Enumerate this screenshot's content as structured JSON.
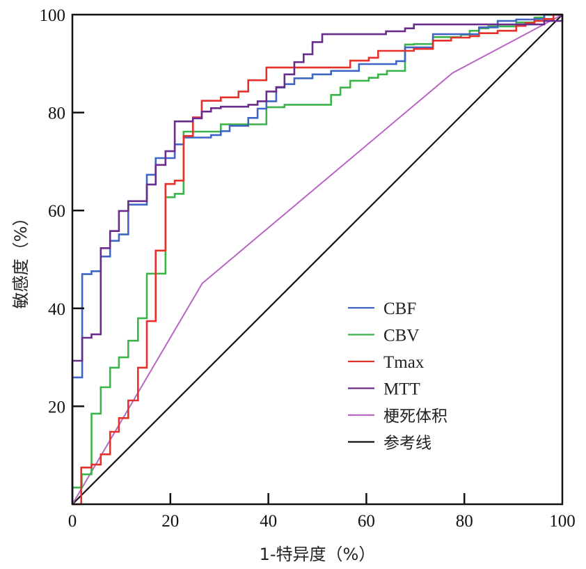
{
  "chart_data": {
    "type": "line",
    "title": "",
    "xlabel": "1-特异度（%）",
    "ylabel": "敏感度（%）",
    "xlim": [
      0,
      100
    ],
    "ylim": [
      0,
      100
    ],
    "x_ticks": [
      0,
      20,
      40,
      60,
      80,
      100
    ],
    "y_ticks": [
      20,
      40,
      60,
      80,
      100
    ],
    "x_tick_labels": [
      "0",
      "20",
      "40",
      "60",
      "80",
      "100"
    ],
    "y_tick_labels": [
      "20",
      "40",
      "60",
      "80",
      "100"
    ],
    "grid": false,
    "legend_position": "bottom-right",
    "series": [
      {
        "name": "CBF",
        "color": "#3f66c4",
        "step": true,
        "points": [
          [
            0,
            0
          ],
          [
            0,
            25.9
          ],
          [
            2.0,
            47.0
          ],
          [
            3.9,
            47.6
          ],
          [
            5.8,
            50.6
          ],
          [
            7.7,
            53.8
          ],
          [
            9.5,
            55.1
          ],
          [
            11.4,
            61.2
          ],
          [
            15.2,
            67.3
          ],
          [
            17.0,
            70.7
          ],
          [
            20.9,
            73.5
          ],
          [
            22.7,
            74.9
          ],
          [
            28.3,
            75.4
          ],
          [
            30.3,
            76.2
          ],
          [
            32.1,
            77.3
          ],
          [
            35.9,
            78.9
          ],
          [
            37.8,
            80.8
          ],
          [
            39.6,
            82.3
          ],
          [
            41.6,
            85.1
          ],
          [
            43.3,
            85.8
          ],
          [
            45.3,
            87.0
          ],
          [
            49.0,
            87.8
          ],
          [
            52.8,
            88.5
          ],
          [
            58.5,
            89.9
          ],
          [
            66.1,
            90.5
          ],
          [
            67.9,
            93.3
          ],
          [
            73.6,
            96.0
          ],
          [
            83.0,
            97.4
          ],
          [
            86.8,
            98.7
          ],
          [
            90.6,
            99.0
          ],
          [
            94.3,
            99.1
          ],
          [
            96.3,
            100
          ],
          [
            100,
            100
          ]
        ]
      },
      {
        "name": "CBV",
        "color": "#3cb44b",
        "step": true,
        "points": [
          [
            0,
            0
          ],
          [
            0,
            3.4
          ],
          [
            1.9,
            6.1
          ],
          [
            3.9,
            18.5
          ],
          [
            5.8,
            23.9
          ],
          [
            7.7,
            27.9
          ],
          [
            9.5,
            30.0
          ],
          [
            11.4,
            33.4
          ],
          [
            13.4,
            38.0
          ],
          [
            15.2,
            47.1
          ],
          [
            19.0,
            62.7
          ],
          [
            20.9,
            63.4
          ],
          [
            22.7,
            76.1
          ],
          [
            30.3,
            77.6
          ],
          [
            39.6,
            81.1
          ],
          [
            43.3,
            81.6
          ],
          [
            52.8,
            83.6
          ],
          [
            54.7,
            85.1
          ],
          [
            56.7,
            86.5
          ],
          [
            60.5,
            87.1
          ],
          [
            62.4,
            87.8
          ],
          [
            64.2,
            88.5
          ],
          [
            67.9,
            93.9
          ],
          [
            69.7,
            94.0
          ],
          [
            73.6,
            95.4
          ],
          [
            79.3,
            95.9
          ],
          [
            81.1,
            96.7
          ],
          [
            83.0,
            97.2
          ],
          [
            84.9,
            97.6
          ],
          [
            90.6,
            98.4
          ],
          [
            94.3,
            99.4
          ],
          [
            96.3,
            100
          ],
          [
            100,
            100
          ]
        ]
      },
      {
        "name": "Tmax",
        "color": "#e8302a",
        "step": true,
        "points": [
          [
            0,
            0
          ],
          [
            1.8,
            7.5
          ],
          [
            3.9,
            8.1
          ],
          [
            5.8,
            10.2
          ],
          [
            7.7,
            14.8
          ],
          [
            9.5,
            17.6
          ],
          [
            11.4,
            21.2
          ],
          [
            13.4,
            27.9
          ],
          [
            15.2,
            37.4
          ],
          [
            17.0,
            51.8
          ],
          [
            19.0,
            65.4
          ],
          [
            20.9,
            66.1
          ],
          [
            22.7,
            75.2
          ],
          [
            24.6,
            79.0
          ],
          [
            26.4,
            82.4
          ],
          [
            30.3,
            83.1
          ],
          [
            33.9,
            84.3
          ],
          [
            35.9,
            86.6
          ],
          [
            39.6,
            89.2
          ],
          [
            56.7,
            90.6
          ],
          [
            60.5,
            91.2
          ],
          [
            62.4,
            92.6
          ],
          [
            69.7,
            93.0
          ],
          [
            73.6,
            94.7
          ],
          [
            77.3,
            95.3
          ],
          [
            81.1,
            95.6
          ],
          [
            83.0,
            96.2
          ],
          [
            86.8,
            96.7
          ],
          [
            90.6,
            97.7
          ],
          [
            92.5,
            98.3
          ],
          [
            94.3,
            98.7
          ],
          [
            96.3,
            99.1
          ],
          [
            98.2,
            100
          ],
          [
            100,
            100
          ]
        ]
      },
      {
        "name": "MTT",
        "color": "#6a2c8c",
        "step": true,
        "points": [
          [
            0,
            0
          ],
          [
            0,
            29.3
          ],
          [
            2.0,
            34.0
          ],
          [
            3.9,
            34.7
          ],
          [
            5.8,
            52.3
          ],
          [
            7.7,
            55.8
          ],
          [
            9.5,
            59.9
          ],
          [
            11.4,
            61.9
          ],
          [
            15.2,
            65.3
          ],
          [
            17.0,
            69.3
          ],
          [
            19.0,
            72.1
          ],
          [
            20.9,
            78.2
          ],
          [
            24.6,
            78.8
          ],
          [
            26.4,
            80.2
          ],
          [
            28.3,
            80.9
          ],
          [
            30.3,
            81.2
          ],
          [
            35.9,
            81.6
          ],
          [
            37.8,
            82.3
          ],
          [
            39.6,
            84.3
          ],
          [
            41.6,
            85.2
          ],
          [
            43.3,
            87.8
          ],
          [
            45.3,
            90.3
          ],
          [
            47.2,
            91.9
          ],
          [
            49.0,
            94.4
          ],
          [
            51.0,
            96.0
          ],
          [
            64.0,
            96.6
          ],
          [
            67.9,
            97.2
          ],
          [
            69.7,
            98.0
          ],
          [
            96.3,
            98.7
          ],
          [
            100,
            100
          ]
        ]
      },
      {
        "name": "梗死体积",
        "color": "#b865c4",
        "step": false,
        "points": [
          [
            0,
            0
          ],
          [
            26.5,
            45.1
          ],
          [
            77.6,
            88.1
          ],
          [
            100,
            100
          ]
        ]
      },
      {
        "name": "参考线",
        "color": "#111111",
        "step": false,
        "points": [
          [
            0,
            0
          ],
          [
            100,
            100
          ]
        ]
      }
    ]
  }
}
